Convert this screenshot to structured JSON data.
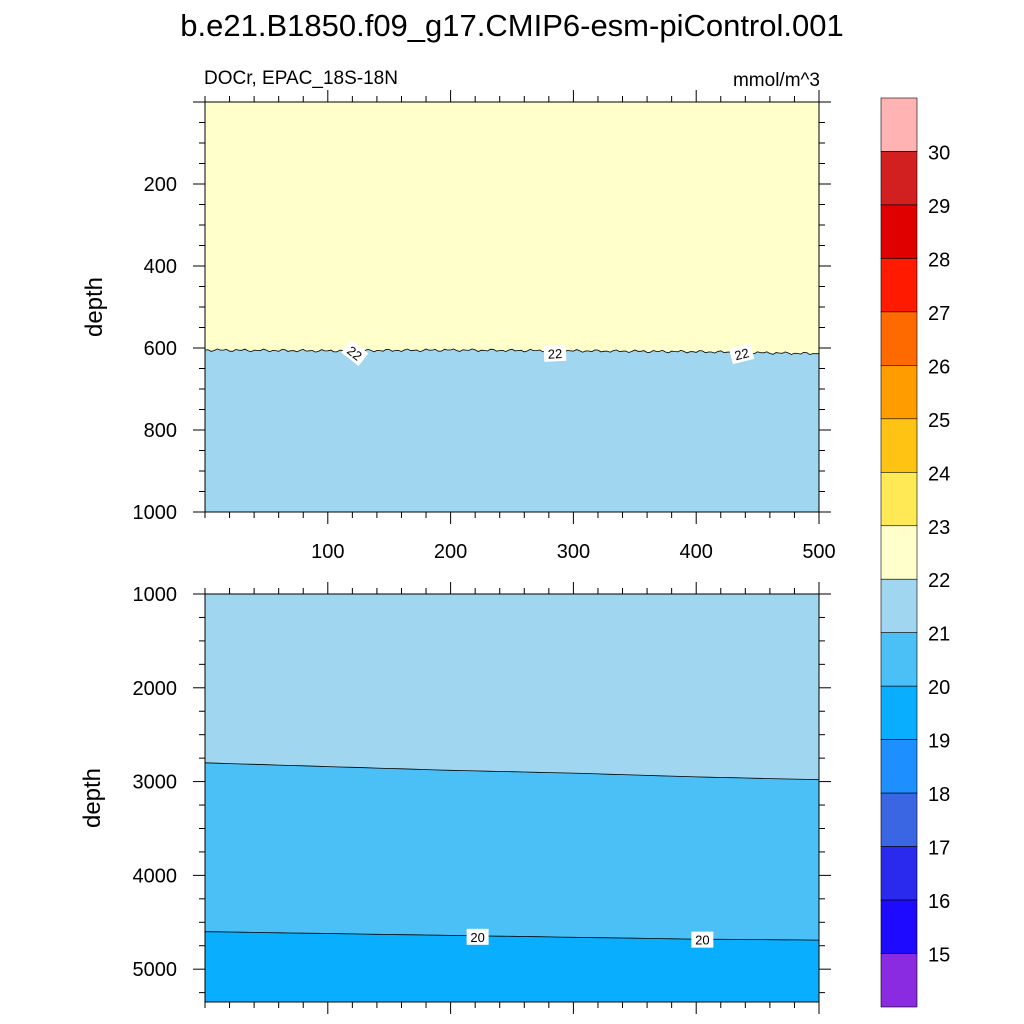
{
  "chart_data": {
    "type": "contour",
    "title": "b.e21.B1850.f09_g17.CMIP6-esm-piControl.001",
    "subtitle_left": "DOCr, EPAC_18S-18N",
    "units": "mmol/m^3",
    "colors": {
      "below_15": "#8a2be2",
      "c15_16": "#1e0aff",
      "c16_17": "#2a2aee",
      "c17_18": "#3a66e4",
      "c18_19": "#1e8fff",
      "c19_20": "#0aaeff",
      "c20_21": "#4ac0f7",
      "c21_22": "#a0d6f0",
      "c22_23": "#ffffcc",
      "c23_24": "#ffea55",
      "c24_25": "#ffc314",
      "c25_26": "#ff9c00",
      "c26_27": "#ff6a00",
      "c27_28": "#ff1a00",
      "c28_29": "#e00000",
      "c29_30": "#d22020",
      "above_30": "#ffb3b3"
    },
    "colorbar": {
      "levels": [
        "15",
        "16",
        "17",
        "18",
        "19",
        "20",
        "21",
        "22",
        "23",
        "24",
        "25",
        "26",
        "27",
        "28",
        "29",
        "30"
      ]
    },
    "panels": [
      {
        "name": "upper",
        "xlim": [
          0,
          500
        ],
        "ylim": [
          0,
          1000
        ],
        "y_reversed": true,
        "ylabel": "depth",
        "xticks": [
          "100",
          "200",
          "300",
          "400",
          "500"
        ],
        "yticks": [
          "200",
          "400",
          "600",
          "800",
          "1000"
        ],
        "contours": [
          {
            "level": "22",
            "depth_at_x": [
              [
                0,
                605
              ],
              [
                100,
                607
              ],
              [
                200,
                605
              ],
              [
                300,
                607
              ],
              [
                400,
                609
              ],
              [
                500,
                614
              ]
            ],
            "labels": [
              {
                "text": "22",
                "x": 122,
                "y": 612,
                "angle": 38
              },
              {
                "text": "22",
                "x": 285,
                "y": 613,
                "angle": -3
              },
              {
                "text": "22",
                "x": 437,
                "y": 614,
                "angle": -14
              }
            ]
          }
        ]
      },
      {
        "name": "lower",
        "xlim": [
          0,
          500
        ],
        "ylim": [
          1000,
          5350
        ],
        "y_reversed": true,
        "ylabel": "depth",
        "xticks": [],
        "yticks": [
          "1000",
          "2000",
          "3000",
          "4000",
          "5000"
        ],
        "contours": [
          {
            "level": "21",
            "depth_at_x": [
              [
                0,
                2800
              ],
              [
                100,
                2840
              ],
              [
                200,
                2880
              ],
              [
                300,
                2910
              ],
              [
                400,
                2950
              ],
              [
                500,
                2980
              ]
            ],
            "labels": []
          },
          {
            "level": "20",
            "depth_at_x": [
              [
                0,
                4600
              ],
              [
                100,
                4620
              ],
              [
                200,
                4640
              ],
              [
                300,
                4660
              ],
              [
                400,
                4680
              ],
              [
                500,
                4690
              ]
            ],
            "labels": [
              {
                "text": "20",
                "x": 222,
                "y": 4655,
                "angle": 0
              },
              {
                "text": "20",
                "x": 405,
                "y": 4685,
                "angle": 0
              }
            ]
          }
        ]
      }
    ]
  }
}
